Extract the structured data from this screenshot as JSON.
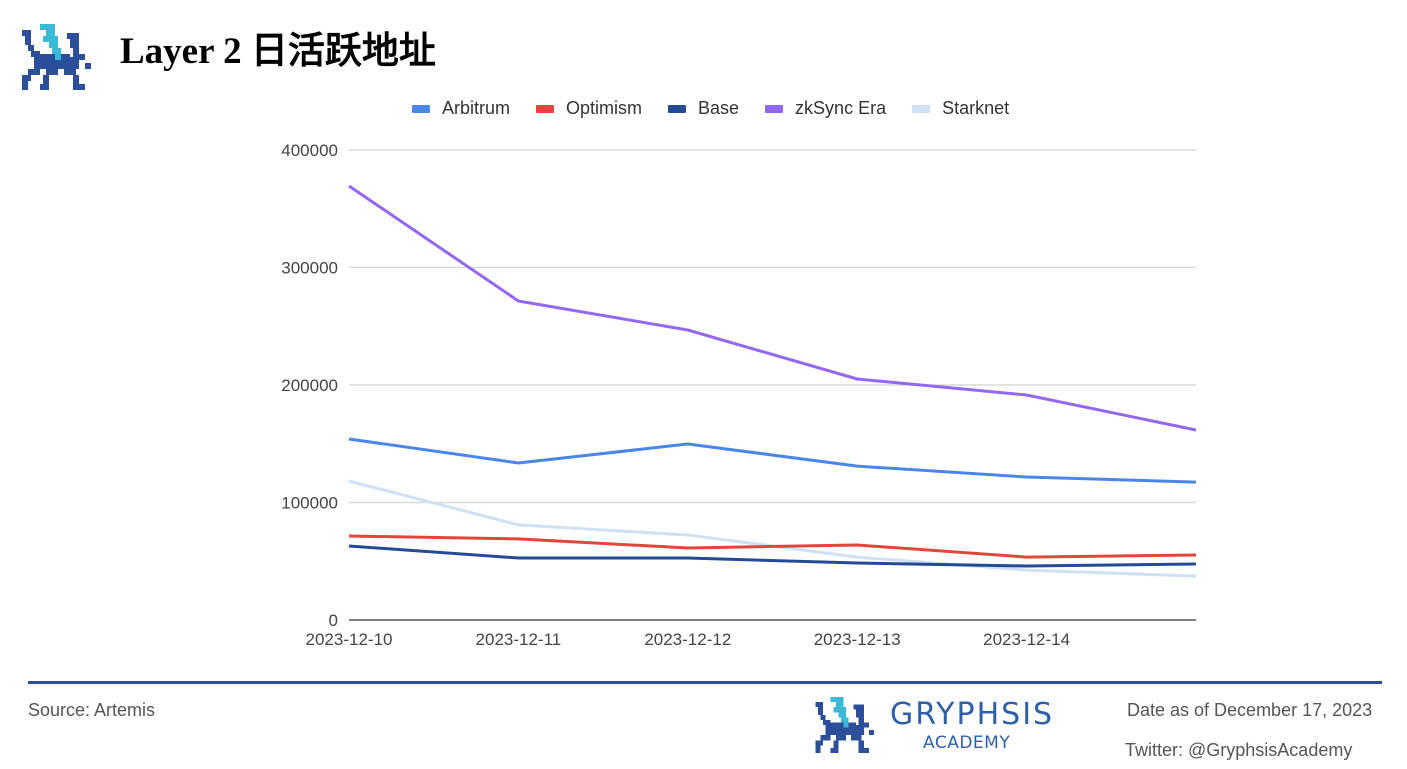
{
  "header": {
    "title_latin": "Layer 2 ",
    "title_cjk": "日活跃地址",
    "logo": "gryphsis-gryphon-logo"
  },
  "footer": {
    "source": "Source: Artemis",
    "brand_name": "GRYPHSIS",
    "brand_sub": "ACADEMY",
    "date": "Date as of December 17, 2023",
    "twitter": "Twitter: @GryphsisAcademy"
  },
  "colors": {
    "rule": "#2e4f93",
    "brand": "#2e5fa8",
    "brand_accent": "#3cb8d8"
  },
  "chart_data": {
    "type": "line",
    "title": "Layer 2 日活跃地址",
    "xlabel": "",
    "ylabel": "",
    "x": [
      "2023-12-10",
      "2023-12-11",
      "2023-12-12",
      "2023-12-13",
      "2023-12-14",
      "2023-12-15"
    ],
    "x_tick_labels": [
      "2023-12-10",
      "2023-12-11",
      "2023-12-12",
      "2023-12-13",
      "2023-12-14"
    ],
    "y_ticks": [
      0,
      100000,
      200000,
      300000,
      400000
    ],
    "ylim": [
      0,
      400000
    ],
    "grid": true,
    "legend_position": "top",
    "series": [
      {
        "name": "Arbitrum",
        "color": "#4a86e8",
        "values": [
          154000,
          133600,
          149800,
          131000,
          121700,
          117400
        ]
      },
      {
        "name": "Optimism",
        "color": "#e0463b",
        "values": [
          71500,
          69000,
          61300,
          63800,
          53500,
          55300
        ]
      },
      {
        "name": "Base",
        "color": "#234a95",
        "values": [
          63000,
          52800,
          52800,
          48500,
          46000,
          47700
        ]
      },
      {
        "name": "zkSync Era",
        "color": "#9467f0",
        "values": [
          369400,
          271500,
          246800,
          205100,
          191500,
          161700
        ]
      },
      {
        "name": "Starknet",
        "color": "#cfe2f3",
        "values": [
          118300,
          80900,
          72300,
          53500,
          42500,
          37400
        ]
      }
    ]
  }
}
